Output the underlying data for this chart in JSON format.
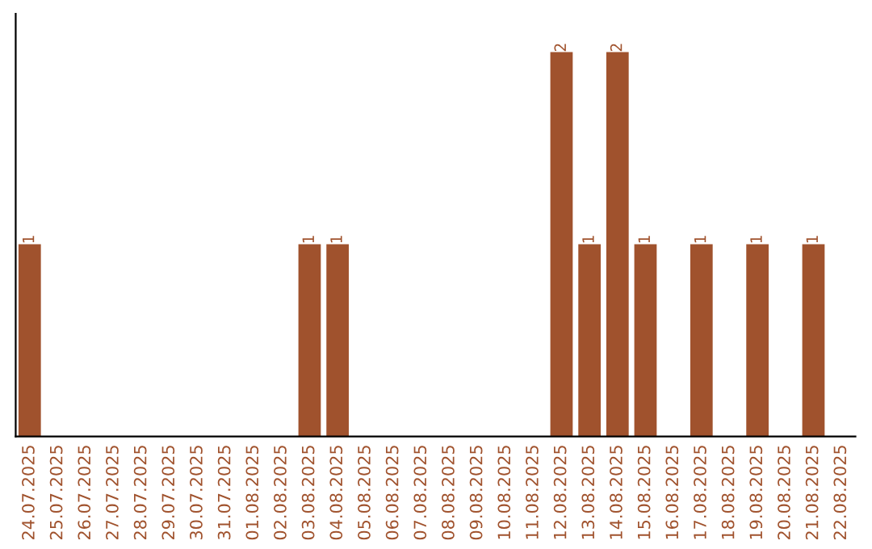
{
  "chart_data": {
    "type": "bar",
    "categories": [
      "24.07.2025",
      "25.07.2025",
      "26.07.2025",
      "27.07.2025",
      "28.07.2025",
      "29.07.2025",
      "30.07.2025",
      "31.07.2025",
      "01.08.2025",
      "02.08.2025",
      "03.08.2025",
      "04.08.2025",
      "05.08.2025",
      "06.08.2025",
      "07.08.2025",
      "08.08.2025",
      "09.08.2025",
      "10.08.2025",
      "11.08.2025",
      "12.08.2025",
      "13.08.2025",
      "14.08.2025",
      "15.08.2025",
      "16.08.2025",
      "17.08.2025",
      "18.08.2025",
      "19.08.2025",
      "20.08.2025",
      "21.08.2025",
      "22.08.2025"
    ],
    "values": [
      1,
      0,
      0,
      0,
      0,
      0,
      0,
      0,
      0,
      0,
      1,
      1,
      0,
      0,
      0,
      0,
      0,
      0,
      0,
      2,
      1,
      2,
      1,
      0,
      1,
      0,
      1,
      0,
      1,
      0
    ],
    "value_labels": [
      "1",
      null,
      null,
      null,
      null,
      null,
      null,
      null,
      null,
      null,
      "1",
      "1",
      null,
      null,
      null,
      null,
      null,
      null,
      null,
      "2",
      "1",
      "2",
      "1",
      null,
      "1",
      null,
      "1",
      null,
      "1",
      null
    ],
    "color": "#a0522d",
    "tick_labels": "x",
    "grid": false,
    "legend": false
  }
}
